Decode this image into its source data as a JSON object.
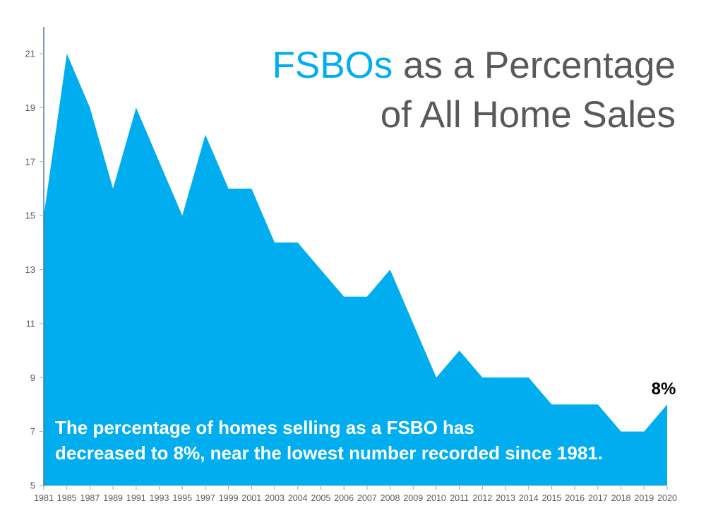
{
  "title": {
    "accent": "FSBOs",
    "line1_rest": " as a Percentage",
    "line2": "of All Home Sales"
  },
  "annotation": {
    "line1": "The percentage of homes selling as a FSBO has",
    "line2": "decreased to 8%, near the lowest number recorded since 1981."
  },
  "colors": {
    "area": "#00AEEF",
    "title_accent": "#00AEEF",
    "title_text": "#595959",
    "axis_line": "#41719C",
    "tick": "#A6A6A6",
    "axis_label": "#595959",
    "x_axis_line": "#D9D9D9",
    "annotation_text": "#FFFFFF",
    "end_label_text": "#000000",
    "background": "#FFFFFF"
  },
  "chart_data": {
    "type": "area",
    "title": "FSBOs as a Percentage of All Home Sales",
    "xlabel": "",
    "ylabel": "",
    "categories": [
      "1981",
      "1985",
      "1987",
      "1989",
      "1991",
      "1993",
      "1995",
      "1997",
      "1999",
      "2001",
      "2003",
      "2004",
      "2005",
      "2006",
      "2007",
      "2008",
      "2009",
      "2010",
      "2011",
      "2012",
      "2013",
      "2014",
      "2015",
      "2016",
      "2017",
      "2018",
      "2019",
      "2020"
    ],
    "values": [
      15,
      21,
      19,
      16,
      19,
      17,
      15,
      18,
      16,
      16,
      14,
      14,
      13,
      12,
      12,
      13,
      11,
      9,
      10,
      9,
      9,
      9,
      8,
      8,
      8,
      7,
      7,
      8
    ],
    "ylim": [
      5,
      22
    ],
    "y_ticks": [
      5,
      7,
      9,
      11,
      13,
      15,
      17,
      19,
      21
    ],
    "grid": false,
    "legend": false,
    "end_point_label": "8%",
    "annotation": "The percentage of homes selling as a FSBO has decreased to 8%, near the lowest number recorded since 1981."
  }
}
